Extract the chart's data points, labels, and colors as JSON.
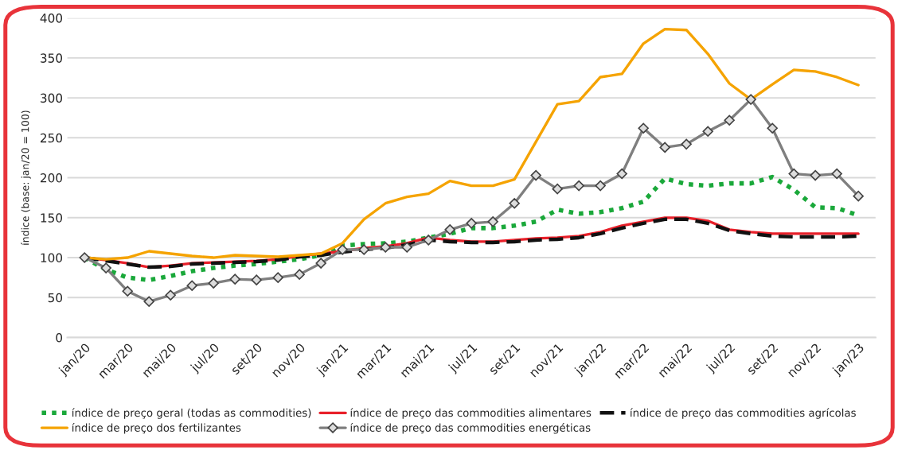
{
  "chart_data": {
    "type": "line",
    "ylabel": "índice (base: jan/20 = 100)",
    "categories": [
      "jan/20",
      null,
      "mar/20",
      null,
      "mai/20",
      null,
      "jul/20",
      null,
      "set/20",
      null,
      "nov/20",
      null,
      "jan/21",
      null,
      "mar/21",
      null,
      "mai/21",
      null,
      "jul/21",
      null,
      "set/21",
      null,
      "nov/21",
      null,
      "jan/22",
      null,
      "mar/22",
      null,
      "mai/22",
      null,
      "jul/22",
      null,
      "set/22",
      null,
      "nov/22",
      null,
      "jan/23"
    ],
    "ylim": [
      0,
      400
    ],
    "yticks": [
      0,
      50,
      100,
      150,
      200,
      250,
      300,
      350,
      400
    ],
    "grid": "y",
    "legend": "bottom",
    "series": [
      {
        "name": "índice de preço geral (todas as commodities)",
        "color": "#1aa83a",
        "line_style": "dotted",
        "marker": "none",
        "values": [
          100,
          85,
          75,
          72,
          77,
          83,
          87,
          90,
          92,
          95,
          98,
          103,
          115,
          117,
          118,
          120,
          125,
          130,
          137,
          137,
          140,
          145,
          160,
          155,
          157,
          162,
          170,
          199,
          192,
          190,
          193,
          193,
          201,
          185,
          163,
          162,
          153
        ]
      },
      {
        "name": "índice de preço das commodities alimentares",
        "color": "#e8202a",
        "line_style": "solid",
        "marker": "none",
        "values": [
          100,
          97,
          93,
          88,
          90,
          93,
          94,
          95,
          96,
          98,
          102,
          105,
          108,
          112,
          114,
          118,
          125,
          122,
          120,
          120,
          122,
          124,
          125,
          127,
          132,
          140,
          145,
          150,
          150,
          146,
          135,
          132,
          130,
          130,
          130,
          130,
          130
        ]
      },
      {
        "name": "índice de preço das commodities agrícolas",
        "color": "#111111",
        "line_style": "dashed",
        "marker": "none",
        "values": [
          100,
          96,
          92,
          88,
          89,
          92,
          93,
          94,
          95,
          97,
          101,
          103,
          107,
          110,
          112,
          116,
          122,
          120,
          119,
          119,
          120,
          122,
          123,
          125,
          130,
          137,
          143,
          148,
          148,
          143,
          134,
          130,
          127,
          126,
          126,
          126,
          127
        ]
      },
      {
        "name": "índice de preço dos fertilizantes",
        "color": "#f5a300",
        "line_style": "solid",
        "marker": "none",
        "values": [
          100,
          98,
          100,
          108,
          105,
          102,
          100,
          103,
          102,
          101,
          103,
          105,
          118,
          148,
          168,
          176,
          180,
          196,
          190,
          190,
          198,
          245,
          292,
          296,
          326,
          330,
          368,
          386,
          385,
          355,
          318,
          298,
          317,
          335,
          333,
          326,
          316
        ]
      },
      {
        "name": "índice de preço das commodities energéticas",
        "color": "#7f7f7f",
        "line_style": "solid",
        "marker": "diamond",
        "values": [
          100,
          87,
          58,
          45,
          53,
          65,
          68,
          73,
          72,
          75,
          79,
          93,
          110,
          110,
          113,
          113,
          122,
          135,
          143,
          145,
          168,
          203,
          186,
          190,
          190,
          205,
          262,
          238,
          242,
          258,
          272,
          298,
          262,
          205,
          203,
          205,
          177
        ]
      }
    ]
  }
}
